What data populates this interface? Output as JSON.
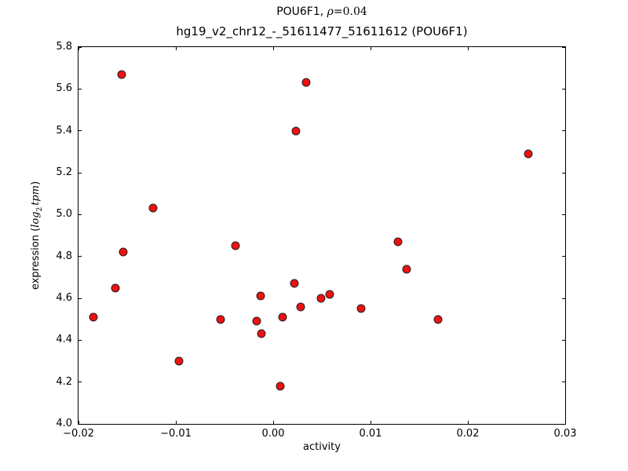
{
  "figure": {
    "title_line1": {
      "prefix": "POU6F1, ",
      "rho": "ρ",
      "suffix": "=0.04"
    },
    "title_line2": "hg19_v2_chr12_-_51611477_51611612 (POU6F1)",
    "xlabel": "activity",
    "ylabel": {
      "prefix": "expression (",
      "log": "log",
      "sub": "2",
      "tpm": "tpm",
      "suffix": ")"
    }
  },
  "chart_data": {
    "type": "scatter",
    "title": "POU6F1, ρ=0.04",
    "subtitle": "hg19_v2_chr12_-_51611477_51611612 (POU6F1)",
    "xlabel": "activity",
    "ylabel": "expression (log2 tpm)",
    "xlim": [
      -0.02,
      0.03
    ],
    "ylim": [
      4.0,
      5.8
    ],
    "xticks": [
      -0.02,
      -0.01,
      0.0,
      0.01,
      0.02,
      0.03
    ],
    "xtick_labels": [
      "−0.02",
      "−0.01",
      "0.00",
      "0.01",
      "0.02",
      "0.03"
    ],
    "yticks": [
      4.0,
      4.2,
      4.4,
      4.6,
      4.8,
      5.0,
      5.2,
      5.4,
      5.6,
      5.8
    ],
    "ytick_labels": [
      "4.0",
      "4.2",
      "4.4",
      "4.6",
      "4.8",
      "5.0",
      "5.2",
      "5.4",
      "5.6",
      "5.8"
    ],
    "grid": false,
    "legend": null,
    "marker": {
      "shape": "circle",
      "color": "#ee1111",
      "edge_color": "#222222"
    },
    "points": [
      [
        -0.0156,
        5.67
      ],
      [
        0.0034,
        5.63
      ],
      [
        0.0023,
        5.4
      ],
      [
        -0.0123,
        5.03
      ],
      [
        0.0262,
        5.29
      ],
      [
        0.0128,
        4.87
      ],
      [
        -0.0154,
        4.82
      ],
      [
        -0.0162,
        4.65
      ],
      [
        -0.0185,
        4.51
      ],
      [
        -0.0039,
        4.85
      ],
      [
        -0.0013,
        4.61
      ],
      [
        0.0022,
        4.67
      ],
      [
        0.0028,
        4.56
      ],
      [
        -0.0054,
        4.5
      ],
      [
        -0.0017,
        4.49
      ],
      [
        0.001,
        4.51
      ],
      [
        0.0049,
        4.6
      ],
      [
        0.0058,
        4.62
      ],
      [
        0.009,
        4.55
      ],
      [
        0.0137,
        4.74
      ],
      [
        0.0169,
        4.5
      ],
      [
        -0.0097,
        4.3
      ],
      [
        0.0007,
        4.18
      ],
      [
        -0.0012,
        4.43
      ]
    ]
  }
}
